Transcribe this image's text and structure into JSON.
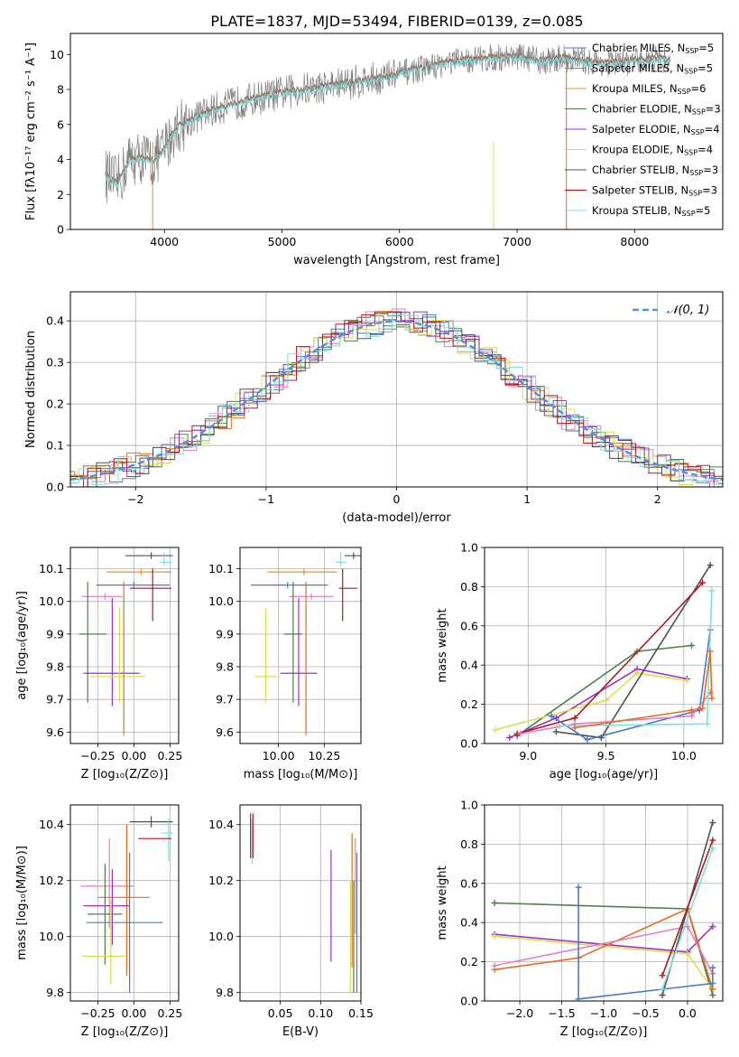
{
  "figure": {
    "title": "PLATE=1837, MJD=53494, FIBERID=0139, z=0.085"
  },
  "colors": {
    "Chabrier MILES": "#4a78d0",
    "Salpeter MILES": "#e07020",
    "Kroupa MILES": "#e39030",
    "Chabrier ELODIE": "#4e7e50",
    "Salpeter ELODIE": "#a030c0",
    "Kroupa ELODIE": "#d8e050",
    "Chabrier STELIB": "#505050",
    "Salpeter STELIB": "#b01818",
    "Kroupa STELIB": "#7fdede",
    "data": "#808080",
    "normal": "#5b8fd8",
    "Kroupa MILES (panels)": "#e080c0"
  },
  "chart_data": [
    {
      "id": "spectrum",
      "type": "line",
      "title": "PLATE=1837, MJD=53494, FIBERID=0139, z=0.085",
      "xlabel": "wavelength [Angstrom, rest frame]",
      "ylabel": "Flux [fλ10⁻¹⁷ erg cm⁻² s⁻¹ A⁻¹]",
      "xlim": [
        3200,
        8750
      ],
      "ylim": [
        0,
        11.2
      ],
      "xticks": [
        4000,
        5000,
        6000,
        7000,
        8000
      ],
      "yticks": [
        0,
        2,
        4,
        6,
        8,
        10
      ],
      "grid": false,
      "legend_position": "top-right",
      "legend": [
        {
          "label": "Chabrier MILES, N",
          "sub": "SSP",
          "suffix": "=5",
          "color": "#4a78d0"
        },
        {
          "label": "Salpeter MILES, N",
          "sub": "SSP",
          "suffix": "=5",
          "color": "#e07020"
        },
        {
          "label": "Kroupa MILES, N",
          "sub": "SSP",
          "suffix": "=6",
          "color": "#e39030"
        },
        {
          "label": "Chabrier ELODIE, N",
          "sub": "SSP",
          "suffix": "=3",
          "color": "#4e7e50"
        },
        {
          "label": "Salpeter ELODIE, N",
          "sub": "SSP",
          "suffix": "=4",
          "color": "#a030c0"
        },
        {
          "label": "Kroupa ELODIE, N",
          "sub": "SSP",
          "suffix": "=4",
          "color": "#d8e050"
        },
        {
          "label": "Chabrier STELIB, N",
          "sub": "SSP",
          "suffix": "=3",
          "color": "#505050"
        },
        {
          "label": "Salpeter STELIB, N",
          "sub": "SSP",
          "suffix": "=3",
          "color": "#b01818"
        },
        {
          "label": "Kroupa STELIB, N",
          "sub": "SSP",
          "suffix": "=5",
          "color": "#7fdede"
        }
      ],
      "continuum": {
        "x": [
          3500,
          3600,
          3700,
          3800,
          3900,
          4000,
          4100,
          4200,
          4400,
          4600,
          4800,
          5000,
          5200,
          5400,
          5600,
          5800,
          6000,
          6200,
          6400,
          6600,
          6800,
          7000,
          7200,
          7400,
          7600,
          7800,
          8000,
          8200,
          8300
        ],
        "y": [
          3.1,
          2.6,
          4.0,
          4.1,
          3.9,
          4.6,
          5.8,
          6.2,
          6.8,
          7.2,
          7.5,
          7.8,
          8.0,
          8.2,
          8.4,
          8.6,
          8.9,
          9.2,
          9.5,
          9.7,
          9.8,
          9.9,
          9.6,
          9.8,
          9.6,
          9.5,
          9.6,
          9.8,
          9.6
        ]
      }
    },
    {
      "id": "residuals",
      "type": "histogram",
      "xlabel": "(data-model)/error",
      "ylabel": "Normed distribution",
      "xlim": [
        -2.5,
        2.5
      ],
      "ylim": [
        0,
        0.47
      ],
      "xticks": [
        -2,
        -1,
        0,
        1,
        2
      ],
      "yticks": [
        0.0,
        0.1,
        0.2,
        0.3,
        0.4
      ],
      "grid": true,
      "legend": [
        {
          "label": "𝒩(0, 1)",
          "color": "#5b8fd8",
          "style": "dashed"
        }
      ],
      "legend_position": "top-right",
      "curve": {
        "name": "𝒩(0, 1)",
        "mu": 0,
        "sigma": 1
      }
    },
    {
      "id": "z-age",
      "type": "errorbar",
      "xlabel": "Z [log₁₀(Z/Z⊙)]",
      "ylabel": "age  [log₁₀(age/yr)]",
      "xlim": [
        -0.44,
        0.31
      ],
      "ylim": [
        9.565,
        10.165
      ],
      "xticks": [
        -0.25,
        0.0,
        0.25
      ],
      "xticklabels": [
        "−0.25",
        "0.00",
        "0.25"
      ],
      "yticks": [
        9.6,
        9.7,
        9.8,
        9.9,
        10.0,
        10.1
      ],
      "grid": true,
      "points": [
        {
          "x": 0.12,
          "y": 10.14,
          "xerr": [
            0.18,
            0.15
          ],
          "yerr": [
            0.01,
            0.01
          ],
          "color": "#505050"
        },
        {
          "x": 0.21,
          "y": 10.12,
          "xerr": [
            0.03,
            0.05
          ],
          "yerr": [
            0.01,
            0.03
          ],
          "color": "#7fdede"
        },
        {
          "x": 0.05,
          "y": 10.09,
          "xerr": [
            0.24,
            0.21
          ],
          "yerr": [
            0.01,
            0.01
          ],
          "color": "#e39030"
        },
        {
          "x": 0.0,
          "y": 10.05,
          "xerr": [
            0.26,
            0.25
          ],
          "yerr": [
            0.01,
            0.01
          ],
          "color": "#4a78d0"
        },
        {
          "x": -0.2,
          "y": 10.015,
          "xerr": [
            0.16,
            0.12
          ],
          "yerr": [
            0.01,
            0.01
          ],
          "color": "#e080c0"
        },
        {
          "x": 0.13,
          "y": 10.04,
          "xerr": [
            0.16,
            0.13
          ],
          "yerr": [
            0.1,
            0.06
          ],
          "color": "#b01818"
        },
        {
          "x": -0.32,
          "y": 9.9,
          "xerr": [
            0.06,
            0.13
          ],
          "yerr": [
            0.21,
            0.16
          ],
          "color": "#4e7e50"
        },
        {
          "x": -0.15,
          "y": 9.78,
          "xerr": [
            0.2,
            0.19
          ],
          "yerr": [
            0.1,
            0.23
          ],
          "color": "#a030c0"
        },
        {
          "x": -0.1,
          "y": 9.77,
          "xerr": [
            0.2,
            0.18
          ],
          "yerr": [
            0.08,
            0.21
          ],
          "color": "#d8e050"
        },
        {
          "x": -0.07,
          "y": 9.86,
          "xerr": [
            0.0,
            0.0
          ],
          "yerr": [
            0.27,
            0.2
          ],
          "color": "#e07020"
        }
      ]
    },
    {
      "id": "mass-age",
      "type": "errorbar",
      "xlabel": "mass [log₁₀(M/M⊙)]",
      "ylabel": "",
      "xlim": [
        9.79,
        10.45
      ],
      "ylim": [
        9.565,
        10.165
      ],
      "xticks": [
        10.0,
        10.25
      ],
      "xticklabels": [
        "10.00",
        "10.25"
      ],
      "yticks": [
        9.6,
        9.7,
        9.8,
        9.9,
        10.0,
        10.1
      ],
      "grid": true,
      "points": [
        {
          "x": 10.41,
          "y": 10.14,
          "xerr": [
            0.05,
            0.05
          ],
          "yerr": [
            0.01,
            0.01
          ],
          "color": "#505050"
        },
        {
          "x": 10.34,
          "y": 10.12,
          "xerr": [
            0.03,
            0.03
          ],
          "yerr": [
            0.01,
            0.03
          ],
          "color": "#7fdede"
        },
        {
          "x": 10.14,
          "y": 10.09,
          "xerr": [
            0.2,
            0.18
          ],
          "yerr": [
            0.01,
            0.01
          ],
          "color": "#e39030"
        },
        {
          "x": 10.05,
          "y": 10.05,
          "xerr": [
            0.2,
            0.22
          ],
          "yerr": [
            0.01,
            0.01
          ],
          "color": "#4a78d0"
        },
        {
          "x": 10.18,
          "y": 10.015,
          "xerr": [
            0.12,
            0.12
          ],
          "yerr": [
            0.01,
            0.01
          ],
          "color": "#e080c0"
        },
        {
          "x": 10.35,
          "y": 10.04,
          "xerr": [
            0.02,
            0.08
          ],
          "yerr": [
            0.1,
            0.06
          ],
          "color": "#b01818"
        },
        {
          "x": 10.08,
          "y": 9.9,
          "xerr": [
            0.05,
            0.05
          ],
          "yerr": [
            0.21,
            0.16
          ],
          "color": "#4e7e50"
        },
        {
          "x": 10.11,
          "y": 9.78,
          "xerr": [
            0.1,
            0.1
          ],
          "yerr": [
            0.1,
            0.23
          ],
          "color": "#a030c0"
        },
        {
          "x": 9.93,
          "y": 9.77,
          "xerr": [
            0.06,
            0.06
          ],
          "yerr": [
            0.08,
            0.21
          ],
          "color": "#d8e050"
        },
        {
          "x": 10.15,
          "y": 9.86,
          "xerr": [
            0.0,
            0.0
          ],
          "yerr": [
            0.27,
            0.2
          ],
          "color": "#e07020"
        }
      ]
    },
    {
      "id": "age-weight",
      "type": "line",
      "xlabel": "age  [log₁₀(age/yr)]",
      "ylabel": "mass weight",
      "xlim": [
        8.72,
        10.25
      ],
      "ylim": [
        0,
        1.0
      ],
      "xticks": [
        9.0,
        9.5,
        10.0
      ],
      "xticklabels": [
        "9.0",
        "9.5",
        "10.0"
      ],
      "yticks": [
        0.0,
        0.2,
        0.4,
        0.6,
        0.8,
        1.0
      ],
      "grid": true,
      "series": [
        {
          "color": "#4e7e50",
          "x": [
            8.93,
            9.7,
            10.05
          ],
          "y": [
            0.04,
            0.47,
            0.5
          ]
        },
        {
          "color": "#a030c0",
          "x": [
            8.88,
            9.18,
            9.7,
            10.02
          ],
          "y": [
            0.03,
            0.13,
            0.38,
            0.33
          ]
        },
        {
          "color": "#d8e050",
          "x": [
            8.79,
            9.5,
            9.7,
            10.02
          ],
          "y": [
            0.07,
            0.22,
            0.36,
            0.32
          ]
        },
        {
          "color": "#505050",
          "x": [
            9.18,
            9.47,
            10.17
          ],
          "y": [
            0.06,
            0.03,
            0.91
          ]
        },
        {
          "color": "#b01818",
          "x": [
            8.93,
            9.3,
            10.12
          ],
          "y": [
            0.05,
            0.13,
            0.82
          ]
        },
        {
          "color": "#4a78d0",
          "x": [
            9.15,
            9.38,
            10.1,
            10.17
          ],
          "y": [
            0.14,
            0.02,
            0.17,
            0.58
          ]
        },
        {
          "color": "#e080c0",
          "x": [
            8.95,
            9.3,
            10.05,
            10.17
          ],
          "y": [
            0.05,
            0.1,
            0.14,
            0.26
          ]
        },
        {
          "color": "#7fdede",
          "x": [
            9.2,
            10.15,
            10.18
          ],
          "y": [
            0.09,
            0.1,
            0.78
          ]
        },
        {
          "color": "#e07020",
          "x": [
            9.3,
            10.05,
            10.12,
            10.17,
            10.18
          ],
          "y": [
            0.08,
            0.17,
            0.18,
            0.47,
            0.23
          ]
        }
      ]
    },
    {
      "id": "z-mass",
      "type": "errorbar",
      "xlabel": "Z [log₁₀(Z/Z⊙)]",
      "ylabel": "mass [log₁₀(M/M⊙)]",
      "xlim": [
        -0.44,
        0.31
      ],
      "ylim": [
        9.77,
        10.47
      ],
      "xticks": [
        -0.25,
        0.0,
        0.25
      ],
      "xticklabels": [
        "−0.25",
        "0.00",
        "0.25"
      ],
      "yticks": [
        9.8,
        10.0,
        10.2,
        10.4
      ],
      "grid": true,
      "points": [
        {
          "x": 0.12,
          "y": 10.41,
          "xerr": [
            0.15,
            0.15
          ],
          "yerr": [
            0.02,
            0.02
          ],
          "color": "#505050"
        },
        {
          "x": 0.24,
          "y": 10.37,
          "xerr": [
            0.05,
            0.03
          ],
          "yerr": [
            0.1,
            0.05
          ],
          "color": "#7fdede"
        },
        {
          "x": 0.13,
          "y": 10.35,
          "xerr": [
            0.1,
            0.13
          ],
          "yerr": [
            0.0,
            0.0
          ],
          "color": "#b01818"
        },
        {
          "x": -0.17,
          "y": 10.18,
          "xerr": [
            0.2,
            0.17
          ],
          "yerr": [
            0.15,
            0.17
          ],
          "color": "#e080c0"
        },
        {
          "x": -0.05,
          "y": 10.14,
          "xerr": [
            0.2,
            0.16
          ],
          "yerr": [
            0.28,
            0.26
          ],
          "color": "#e07020"
        },
        {
          "x": -0.15,
          "y": 10.11,
          "xerr": [
            0.2,
            0.12
          ],
          "yerr": [
            0.14,
            0.13
          ],
          "color": "#a030c0"
        },
        {
          "x": -0.2,
          "y": 10.08,
          "xerr": [
            0.12,
            0.12
          ],
          "yerr": [
            0.18,
            0.18
          ],
          "color": "#4e7e50"
        },
        {
          "x": -0.03,
          "y": 10.05,
          "xerr": [
            0.3,
            0.23
          ],
          "yerr": [
            0.25,
            0.25
          ],
          "color": "#4a78d0"
        },
        {
          "x": -0.16,
          "y": 9.93,
          "xerr": [
            0.2,
            0.1
          ],
          "yerr": [
            0.1,
            0.2
          ],
          "color": "#d8e050"
        }
      ]
    },
    {
      "id": "ebv-mass",
      "type": "errorbar",
      "xlabel": "E(B-V)",
      "ylabel": "",
      "xlim": [
        0.0,
        0.15
      ],
      "ylim": [
        9.77,
        10.47
      ],
      "xticks": [
        0.05,
        0.1,
        0.15
      ],
      "xticklabels": [
        "0.05",
        "0.10",
        "0.15"
      ],
      "yticks": [
        9.8,
        10.0,
        10.2,
        10.4
      ],
      "grid": true,
      "points": [
        {
          "x": 0.013,
          "y": 10.36,
          "xerr": [
            0,
            0
          ],
          "yerr": [
            0.08,
            0.08
          ],
          "color": "#505050"
        },
        {
          "x": 0.015,
          "y": 10.34,
          "xerr": [
            0,
            0
          ],
          "yerr": [
            0.08,
            0.08
          ],
          "color": "#7fdede"
        },
        {
          "x": 0.016,
          "y": 10.36,
          "xerr": [
            0,
            0
          ],
          "yerr": [
            0.08,
            0.08
          ],
          "color": "#b01818"
        },
        {
          "x": 0.113,
          "y": 10.11,
          "xerr": [
            0,
            0
          ],
          "yerr": [
            0.2,
            0.2
          ],
          "color": "#a030c0"
        },
        {
          "x": 0.137,
          "y": 10.0,
          "xerr": [
            0,
            0
          ],
          "yerr": [
            0.2,
            0.2
          ],
          "color": "#d8e050"
        },
        {
          "x": 0.139,
          "y": 10.14,
          "xerr": [
            0,
            0
          ],
          "yerr": [
            0.25,
            0.23
          ],
          "color": "#e07020"
        },
        {
          "x": 0.141,
          "y": 10.0,
          "xerr": [
            0,
            0
          ],
          "yerr": [
            0.2,
            0.2
          ],
          "color": "#4e7e50"
        },
        {
          "x": 0.143,
          "y": 10.18,
          "xerr": [
            0,
            0
          ],
          "yerr": [
            0.17,
            0.17
          ],
          "color": "#e080c0"
        },
        {
          "x": 0.145,
          "y": 10.05,
          "xerr": [
            0,
            0
          ],
          "yerr": [
            0.25,
            0.25
          ],
          "color": "#4a78d0"
        }
      ]
    },
    {
      "id": "z-weight",
      "type": "line",
      "xlabel": "Z [log₁₀(Z/Z⊙)]",
      "ylabel": "mass weight",
      "xlim": [
        -2.42,
        0.42
      ],
      "ylim": [
        0,
        1.0
      ],
      "xticks": [
        -2.0,
        -1.5,
        -1.0,
        -0.5,
        0.0
      ],
      "xticklabels": [
        "−2.0",
        "−1.5",
        "−1.0",
        "−0.5",
        "0.0"
      ],
      "yticks": [
        0.0,
        0.2,
        0.4,
        0.6,
        0.8,
        1.0
      ],
      "grid": true,
      "series": [
        {
          "color": "#4e7e50",
          "x": [
            -2.3,
            0.0,
            0.3
          ],
          "y": [
            0.5,
            0.47,
            0.03
          ]
        },
        {
          "color": "#a030c0",
          "x": [
            -2.3,
            0.0,
            0.3
          ],
          "y": [
            0.34,
            0.25,
            0.38
          ]
        },
        {
          "color": "#d8e050",
          "x": [
            -2.3,
            0.0,
            0.3
          ],
          "y": [
            0.33,
            0.24,
            0.06
          ]
        },
        {
          "color": "#e07020",
          "x": [
            -2.3,
            -1.3,
            0.0,
            0.3
          ],
          "y": [
            0.16,
            0.22,
            0.47,
            0.06
          ]
        },
        {
          "color": "#e080c0",
          "x": [
            -2.3,
            0.0,
            0.3
          ],
          "y": [
            0.18,
            0.38,
            0.14
          ]
        },
        {
          "color": "#4a78d0",
          "x": [
            -1.3,
            -1.3,
            0.3,
            0.3
          ],
          "y": [
            0.58,
            0.01,
            0.09,
            0.17
          ]
        },
        {
          "color": "#505050",
          "x": [
            -0.3,
            0.3
          ],
          "y": [
            0.03,
            0.91
          ]
        },
        {
          "color": "#b01818",
          "x": [
            -0.3,
            0.3
          ],
          "y": [
            0.13,
            0.82
          ]
        },
        {
          "color": "#7fdede",
          "x": [
            -0.3,
            0.3
          ],
          "y": [
            0.06,
            0.78
          ]
        }
      ]
    }
  ]
}
